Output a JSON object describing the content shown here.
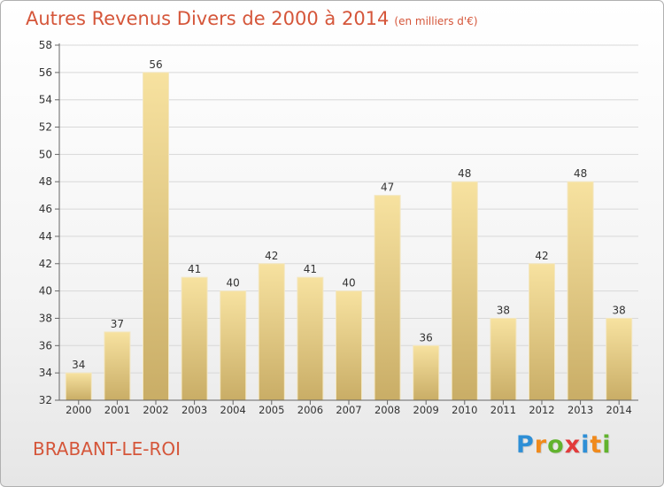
{
  "title": "Autres Revenus Divers de 2000 à 2014",
  "subtitle": "(en milliers d'€)",
  "location": "BRABANT-LE-ROI",
  "logo": {
    "text": "Proxiti",
    "letters": [
      "P",
      "r",
      "o",
      "x",
      "i",
      "t",
      "i"
    ],
    "colors": [
      "#2e8fd6",
      "#f08a1c",
      "#62b32e",
      "#e23b3b",
      "#2e8fd6",
      "#f08a1c",
      "#62b32e"
    ]
  },
  "colors": {
    "title": "#d5563a",
    "bar_top": "#f7e2a0",
    "bar_bottom": "#c9ad66",
    "grid": "#d8d8d8"
  },
  "chart_data": {
    "type": "bar",
    "categories": [
      "2000",
      "2001",
      "2002",
      "2003",
      "2004",
      "2005",
      "2006",
      "2007",
      "2008",
      "2009",
      "2010",
      "2011",
      "2012",
      "2013",
      "2014"
    ],
    "values": [
      34,
      37,
      56,
      41,
      40,
      42,
      41,
      40,
      47,
      36,
      48,
      38,
      42,
      48,
      38
    ],
    "ylim": [
      32,
      58
    ],
    "yticks": [
      32,
      34,
      36,
      38,
      40,
      42,
      44,
      46,
      48,
      50,
      52,
      54,
      56,
      58
    ],
    "grid": true,
    "xlabel": "",
    "ylabel": ""
  }
}
